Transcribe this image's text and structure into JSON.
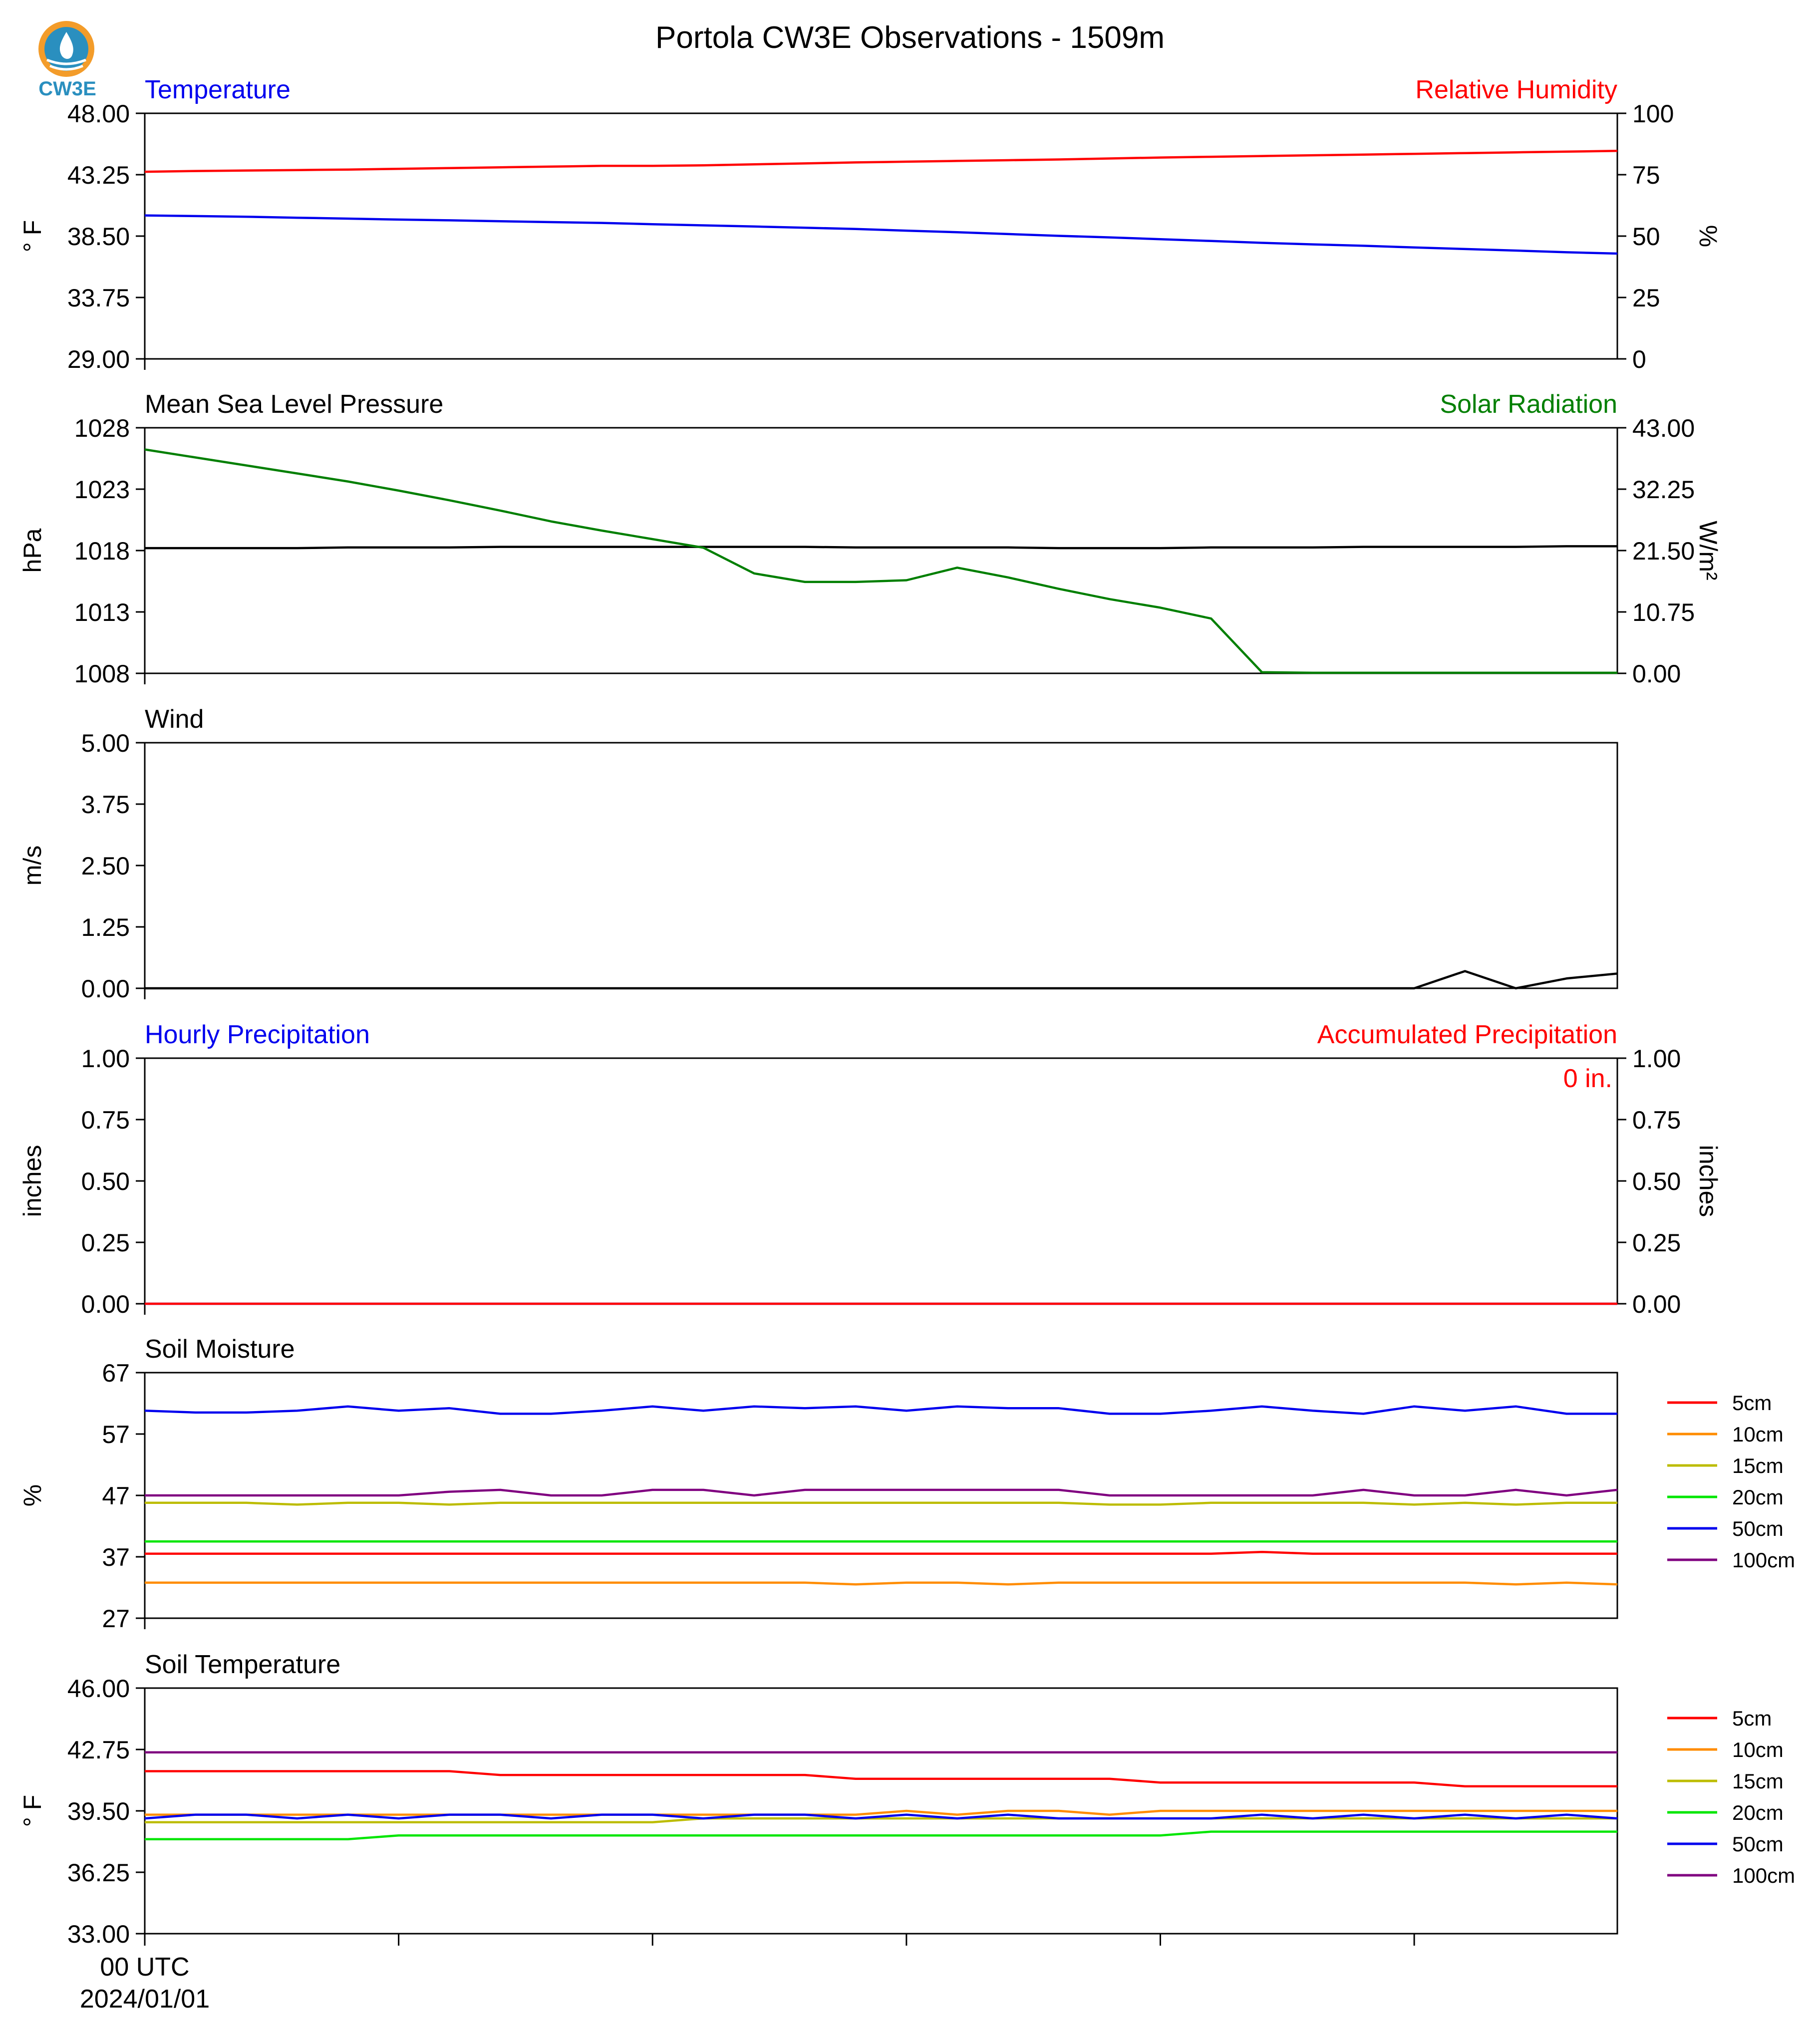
{
  "header": {
    "title": "Portola CW3E Observations - 1509m",
    "logo_text": "CW3E"
  },
  "x_axis": {
    "first_tick_labels": [
      "00 UTC",
      "2024/01/01"
    ]
  },
  "colors": {
    "red": "#ff0000",
    "blue": "#0000ee",
    "green": "#007f00",
    "black": "#000000",
    "orange": "#ff8c00",
    "olive": "#bcbc00",
    "lime": "#00e600",
    "purple": "#800080",
    "logo_orange": "#f39c2a",
    "logo_blue": "#2a8fbf"
  },
  "chart_data": [
    {
      "type": "line",
      "title_left": "Temperature",
      "title_right": "Relative Humidity",
      "ylabel_left": "° F",
      "ylabel_right": "%",
      "ylim_left": [
        29,
        48
      ],
      "ylim_right": [
        0,
        100
      ],
      "yticks_left": [
        "48.00",
        "43.25",
        "38.50",
        "33.75",
        "29.00"
      ],
      "yticks_right": [
        "100",
        "75",
        "50",
        "25",
        "0"
      ],
      "x": [
        0,
        1,
        2,
        3,
        4,
        5,
        6,
        7,
        8,
        9,
        10,
        11,
        12,
        13,
        14,
        15,
        16,
        17,
        18,
        19,
        20,
        21,
        22,
        23,
        24,
        25,
        26,
        27,
        28,
        29
      ],
      "series": [
        {
          "axis": "left",
          "color": "#0000ee",
          "values": [
            40.1,
            40.05,
            40.0,
            39.92,
            39.85,
            39.78,
            39.72,
            39.65,
            39.58,
            39.52,
            39.42,
            39.33,
            39.24,
            39.15,
            39.05,
            38.92,
            38.8,
            38.66,
            38.52,
            38.4,
            38.26,
            38.12,
            37.98,
            37.86,
            37.75,
            37.62,
            37.5,
            37.38,
            37.25,
            37.15
          ]
        },
        {
          "axis": "right",
          "color": "#ff0000",
          "values": [
            76.2,
            76.5,
            76.7,
            76.9,
            77.1,
            77.4,
            77.7,
            78.0,
            78.3,
            78.6,
            78.6,
            78.8,
            79.2,
            79.6,
            80.0,
            80.3,
            80.6,
            80.9,
            81.2,
            81.6,
            82.0,
            82.3,
            82.6,
            82.9,
            83.2,
            83.5,
            83.8,
            84.1,
            84.4,
            84.7
          ]
        }
      ]
    },
    {
      "type": "line",
      "title_left": "Mean Sea Level Pressure",
      "title_right": "Solar Radiation",
      "ylabel_left": "hPa",
      "ylabel_right": "W/m²",
      "ylim_left": [
        1008,
        1028
      ],
      "ylim_right": [
        0,
        43
      ],
      "yticks_left": [
        "1028",
        "1023",
        "1018",
        "1013",
        "1008"
      ],
      "yticks_right": [
        "43.00",
        "32.25",
        "21.50",
        "10.75",
        "0.00"
      ],
      "x": [
        0,
        1,
        2,
        3,
        4,
        5,
        6,
        7,
        8,
        9,
        10,
        11,
        12,
        13,
        14,
        15,
        16,
        17,
        18,
        19,
        20,
        21,
        22,
        23,
        24,
        25,
        26,
        27,
        28,
        29
      ],
      "series": [
        {
          "axis": "left",
          "color": "#000000",
          "values": [
            1018.2,
            1018.2,
            1018.2,
            1018.2,
            1018.25,
            1018.25,
            1018.25,
            1018.3,
            1018.3,
            1018.3,
            1018.3,
            1018.3,
            1018.3,
            1018.3,
            1018.25,
            1018.25,
            1018.25,
            1018.25,
            1018.2,
            1018.2,
            1018.2,
            1018.25,
            1018.25,
            1018.25,
            1018.3,
            1018.3,
            1018.3,
            1018.3,
            1018.35,
            1018.35
          ]
        },
        {
          "axis": "right",
          "color": "#007f00",
          "values": [
            39.2,
            37.8,
            36.4,
            35.0,
            33.6,
            32.0,
            30.3,
            28.5,
            26.6,
            25.0,
            23.5,
            22.0,
            17.5,
            16.0,
            16.0,
            16.3,
            18.5,
            16.8,
            14.8,
            13.0,
            11.5,
            9.6,
            0.2,
            0.1,
            0.1,
            0.1,
            0.1,
            0.1,
            0.1,
            0.1
          ]
        }
      ]
    },
    {
      "type": "line",
      "title_left": "Wind",
      "ylabel_left": "m/s",
      "ylim_left": [
        0,
        5
      ],
      "yticks_left": [
        "5.00",
        "3.75",
        "2.50",
        "1.25",
        "0.00"
      ],
      "x": [
        0,
        1,
        2,
        3,
        4,
        5,
        6,
        7,
        8,
        9,
        10,
        11,
        12,
        13,
        14,
        15,
        16,
        17,
        18,
        19,
        20,
        21,
        22,
        23,
        24,
        25,
        26,
        27,
        28,
        29
      ],
      "series": [
        {
          "axis": "left",
          "color": "#000000",
          "values": [
            0,
            0,
            0,
            0,
            0,
            0,
            0,
            0,
            0,
            0,
            0,
            0,
            0,
            0,
            0,
            0,
            0,
            0,
            0,
            0,
            0,
            0,
            0,
            0,
            0,
            0,
            0.35,
            0,
            0.2,
            0.3
          ]
        }
      ]
    },
    {
      "type": "line",
      "title_left": "Hourly Precipitation",
      "title_right": "Accumulated Precipitation",
      "ylabel_left": "inches",
      "ylabel_right": "inches",
      "annotation": "0 in.",
      "ylim_left": [
        0,
        1
      ],
      "ylim_right": [
        0,
        1
      ],
      "yticks_left": [
        "1.00",
        "0.75",
        "0.50",
        "0.25",
        "0.00"
      ],
      "yticks_right": [
        "1.00",
        "0.75",
        "0.50",
        "0.25",
        "0.00"
      ],
      "x": [
        0,
        1,
        2,
        3,
        4,
        5,
        6,
        7,
        8,
        9,
        10,
        11,
        12,
        13,
        14,
        15,
        16,
        17,
        18,
        19,
        20,
        21,
        22,
        23,
        24,
        25,
        26,
        27,
        28,
        29
      ],
      "series": [
        {
          "axis": "left",
          "color": "#0000ee",
          "values": [
            0,
            0,
            0,
            0,
            0,
            0,
            0,
            0,
            0,
            0,
            0,
            0,
            0,
            0,
            0,
            0,
            0,
            0,
            0,
            0,
            0,
            0,
            0,
            0,
            0,
            0,
            0,
            0,
            0,
            0
          ]
        },
        {
          "axis": "right",
          "color": "#ff0000",
          "values": [
            0,
            0,
            0,
            0,
            0,
            0,
            0,
            0,
            0,
            0,
            0,
            0,
            0,
            0,
            0,
            0,
            0,
            0,
            0,
            0,
            0,
            0,
            0,
            0,
            0,
            0,
            0,
            0,
            0,
            0
          ]
        }
      ]
    },
    {
      "type": "line",
      "title_left": "Soil Moisture",
      "ylabel_left": "%",
      "ylim_left": [
        27,
        67
      ],
      "yticks_left": [
        "67",
        "57",
        "47",
        "37",
        "27"
      ],
      "x": [
        0,
        1,
        2,
        3,
        4,
        5,
        6,
        7,
        8,
        9,
        10,
        11,
        12,
        13,
        14,
        15,
        16,
        17,
        18,
        19,
        20,
        21,
        22,
        23,
        24,
        25,
        26,
        27,
        28,
        29
      ],
      "legend": [
        {
          "name": "5cm",
          "color": "#ff0000"
        },
        {
          "name": "10cm",
          "color": "#ff8c00"
        },
        {
          "name": "15cm",
          "color": "#bcbc00"
        },
        {
          "name": "20cm",
          "color": "#00e600"
        },
        {
          "name": "50cm",
          "color": "#0000ee"
        },
        {
          "name": "100cm",
          "color": "#800080"
        }
      ],
      "series": [
        {
          "color": "#ff0000",
          "values": [
            37.5,
            37.5,
            37.5,
            37.5,
            37.5,
            37.5,
            37.5,
            37.5,
            37.5,
            37.5,
            37.5,
            37.5,
            37.5,
            37.5,
            37.5,
            37.5,
            37.5,
            37.5,
            37.5,
            37.5,
            37.5,
            37.5,
            37.8,
            37.5,
            37.5,
            37.5,
            37.5,
            37.5,
            37.5,
            37.5
          ]
        },
        {
          "color": "#ff8c00",
          "values": [
            32.8,
            32.8,
            32.8,
            32.8,
            32.8,
            32.8,
            32.8,
            32.8,
            32.8,
            32.8,
            32.8,
            32.8,
            32.8,
            32.8,
            32.5,
            32.8,
            32.8,
            32.5,
            32.8,
            32.8,
            32.8,
            32.8,
            32.8,
            32.8,
            32.8,
            32.8,
            32.8,
            32.5,
            32.8,
            32.5
          ]
        },
        {
          "color": "#bcbc00",
          "values": [
            45.8,
            45.8,
            45.8,
            45.5,
            45.8,
            45.8,
            45.5,
            45.8,
            45.8,
            45.8,
            45.8,
            45.8,
            45.8,
            45.8,
            45.8,
            45.8,
            45.8,
            45.8,
            45.8,
            45.5,
            45.5,
            45.8,
            45.8,
            45.8,
            45.8,
            45.5,
            45.8,
            45.5,
            45.8,
            45.8
          ]
        },
        {
          "color": "#00e600",
          "values": [
            39.5,
            39.5,
            39.5,
            39.5,
            39.5,
            39.5,
            39.5,
            39.5,
            39.5,
            39.5,
            39.5,
            39.5,
            39.5,
            39.5,
            39.5,
            39.5,
            39.5,
            39.5,
            39.5,
            39.5,
            39.5,
            39.5,
            39.5,
            39.5,
            39.5,
            39.5,
            39.5,
            39.5,
            39.5,
            39.5
          ]
        },
        {
          "color": "#0000ee",
          "values": [
            60.8,
            60.5,
            60.5,
            60.8,
            61.5,
            60.8,
            61.2,
            60.3,
            60.3,
            60.8,
            61.5,
            60.8,
            61.5,
            61.2,
            61.5,
            60.8,
            61.5,
            61.2,
            61.2,
            60.3,
            60.3,
            60.8,
            61.5,
            60.8,
            60.3,
            61.5,
            60.8,
            61.5,
            60.3,
            60.3
          ]
        },
        {
          "color": "#800080",
          "values": [
            47.0,
            47.0,
            47.0,
            47.0,
            47.0,
            47.0,
            47.6,
            47.9,
            47.0,
            47.0,
            47.9,
            47.9,
            47.0,
            47.9,
            47.9,
            47.9,
            47.9,
            47.9,
            47.9,
            47.0,
            47.0,
            47.0,
            47.0,
            47.0,
            47.9,
            47.0,
            47.0,
            47.9,
            47.0,
            47.9
          ]
        }
      ]
    },
    {
      "type": "line",
      "title_left": "Soil Temperature",
      "ylabel_left": "° F",
      "ylim_left": [
        33,
        46
      ],
      "yticks_left": [
        "46.00",
        "42.75",
        "39.50",
        "36.25",
        "33.00"
      ],
      "x": [
        0,
        1,
        2,
        3,
        4,
        5,
        6,
        7,
        8,
        9,
        10,
        11,
        12,
        13,
        14,
        15,
        16,
        17,
        18,
        19,
        20,
        21,
        22,
        23,
        24,
        25,
        26,
        27,
        28,
        29
      ],
      "xtick_positions": [
        0,
        5,
        10,
        15,
        20,
        25
      ],
      "legend": [
        {
          "name": "5cm",
          "color": "#ff0000"
        },
        {
          "name": "10cm",
          "color": "#ff8c00"
        },
        {
          "name": "15cm",
          "color": "#bcbc00"
        },
        {
          "name": "20cm",
          "color": "#00e600"
        },
        {
          "name": "50cm",
          "color": "#0000ee"
        },
        {
          "name": "100cm",
          "color": "#800080"
        }
      ],
      "series": [
        {
          "color": "#ff0000",
          "values": [
            41.6,
            41.6,
            41.6,
            41.6,
            41.6,
            41.6,
            41.6,
            41.4,
            41.4,
            41.4,
            41.4,
            41.4,
            41.4,
            41.4,
            41.2,
            41.2,
            41.2,
            41.2,
            41.2,
            41.2,
            41.0,
            41.0,
            41.0,
            41.0,
            41.0,
            41.0,
            40.8,
            40.8,
            40.8,
            40.8
          ]
        },
        {
          "color": "#ff8c00",
          "values": [
            39.3,
            39.3,
            39.3,
            39.3,
            39.3,
            39.3,
            39.3,
            39.3,
            39.3,
            39.3,
            39.3,
            39.3,
            39.3,
            39.3,
            39.3,
            39.5,
            39.3,
            39.5,
            39.5,
            39.3,
            39.5,
            39.5,
            39.5,
            39.5,
            39.5,
            39.5,
            39.5,
            39.5,
            39.5,
            39.5
          ]
        },
        {
          "color": "#bcbc00",
          "values": [
            38.9,
            38.9,
            38.9,
            38.9,
            38.9,
            38.9,
            38.9,
            38.9,
            38.9,
            38.9,
            38.9,
            39.1,
            39.1,
            39.1,
            39.1,
            39.1,
            39.1,
            39.1,
            39.1,
            39.1,
            39.1,
            39.1,
            39.1,
            39.1,
            39.1,
            39.1,
            39.1,
            39.1,
            39.1,
            39.1
          ]
        },
        {
          "color": "#00e600",
          "values": [
            38.0,
            38.0,
            38.0,
            38.0,
            38.0,
            38.2,
            38.2,
            38.2,
            38.2,
            38.2,
            38.2,
            38.2,
            38.2,
            38.2,
            38.2,
            38.2,
            38.2,
            38.2,
            38.2,
            38.2,
            38.2,
            38.4,
            38.4,
            38.4,
            38.4,
            38.4,
            38.4,
            38.4,
            38.4,
            38.4
          ]
        },
        {
          "color": "#0000ee",
          "values": [
            39.1,
            39.3,
            39.3,
            39.1,
            39.3,
            39.1,
            39.3,
            39.3,
            39.1,
            39.3,
            39.3,
            39.1,
            39.3,
            39.3,
            39.1,
            39.3,
            39.1,
            39.3,
            39.1,
            39.1,
            39.1,
            39.1,
            39.3,
            39.1,
            39.3,
            39.1,
            39.3,
            39.1,
            39.3,
            39.1
          ]
        },
        {
          "color": "#800080",
          "values": [
            42.6,
            42.6,
            42.6,
            42.6,
            42.6,
            42.6,
            42.6,
            42.6,
            42.6,
            42.6,
            42.6,
            42.6,
            42.6,
            42.6,
            42.6,
            42.6,
            42.6,
            42.6,
            42.6,
            42.6,
            42.6,
            42.6,
            42.6,
            42.6,
            42.6,
            42.6,
            42.6,
            42.6,
            42.6,
            42.6
          ]
        }
      ]
    }
  ]
}
